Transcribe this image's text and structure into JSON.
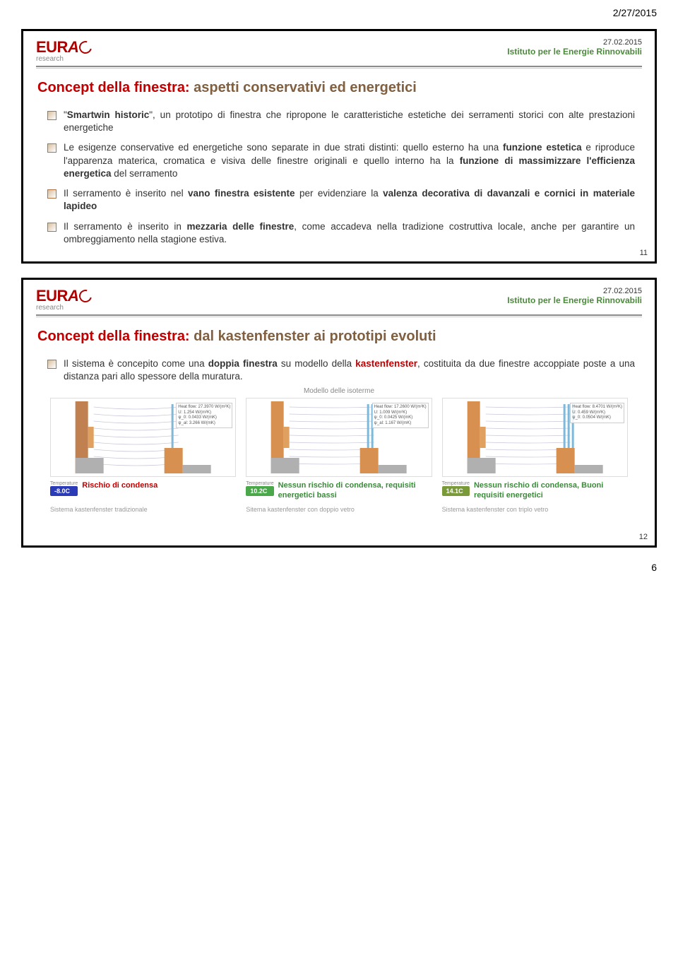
{
  "page_header_date": "2/27/2015",
  "footer_page": "6",
  "slide_date": "27.02.2015",
  "institute": "Istituto per le Energie Rinnovabili",
  "logo_text": "EURAC",
  "logo_sub": "research",
  "slide1": {
    "title_red": "Concept della finestra:",
    "title_rest": " aspetti conservativi ed energetici",
    "bullets": [
      "\"<b>Smartwin historic</b>\", un prototipo di finestra che ripropone le caratteristiche estetiche dei serramenti storici con alte prestazioni energetiche",
      "Le esigenze conservative ed energetiche sono separate in due strati distinti: quello esterno ha una <b>funzione estetica</b> e riproduce l'apparenza materica, cromatica e visiva delle finestre originali e quello interno ha la <b>funzione di massimizzare l'efficienza energetica</b> del serramento",
      "Il serramento è inserito nel <b>vano finestra esistente</b> per evidenziare la <b>valenza decorativa di davanzali e cornici in materiale lapideo</b>",
      "Il serramento è inserito in <b>mezzaria delle finestre</b>, come accadeva nella tradizione costruttiva locale, anche per garantire un ombreggiamento nella stagione estiva."
    ],
    "pagenum": "11"
  },
  "slide2": {
    "title_red": "Concept della finestra:",
    "title_rest": " dal kastenfenster ai prototipi evoluti",
    "bullet": "Il sistema è concepito come una <b>doppia finestra</b> su modello della <r>kastenfenster</r>, costituita da due finestre accoppiate poste a una distanza pari allo spessore della muratura.",
    "iso_caption": "Modello delle isoterme",
    "diagrams": [
      {
        "temp_chip": "-8.0C",
        "chip_color": "#2b3bb8",
        "label": "Rischio di condensa",
        "label_color": "#c00000",
        "heat": [
          "Heat flow:  27.3970 W/(m²K)",
          "U:  1.254 W/(m²K)",
          "ψ_0:  0.0433 W/(mK)",
          "ψ_al:  3.266 W/(mK)"
        ],
        "caption": "Sistema kastenfenster tradizionale"
      },
      {
        "temp_chip": "10.2C",
        "chip_color": "#4aa84a",
        "label": "Nessun rischio di condensa, requisiti energetici bassi",
        "label_color": "#3a8a3a",
        "heat": [
          "Heat flow:  17.2600 W/(m²K)",
          "U:  1.009 W/(m²K)",
          "ψ_0:  0.0425 W/(mK)",
          "ψ_al:  1.167 W/(mK)"
        ],
        "caption": "Sitema kastenfenster con doppio vetro"
      },
      {
        "temp_chip": "14.1C",
        "chip_color": "#7a9a3a",
        "label": "Nessun rischio di condensa, Buoni requisiti energetici",
        "label_color": "#3a8a3a",
        "heat": [
          "Heat flow:  8.4701 W/(m²K)",
          "U:  0.459 W/(m²K)",
          "ψ_0:  0.0504 W/(mK)"
        ],
        "caption": "Sistema kastenfenster con triplo vetro"
      }
    ],
    "pagenum": "12"
  }
}
